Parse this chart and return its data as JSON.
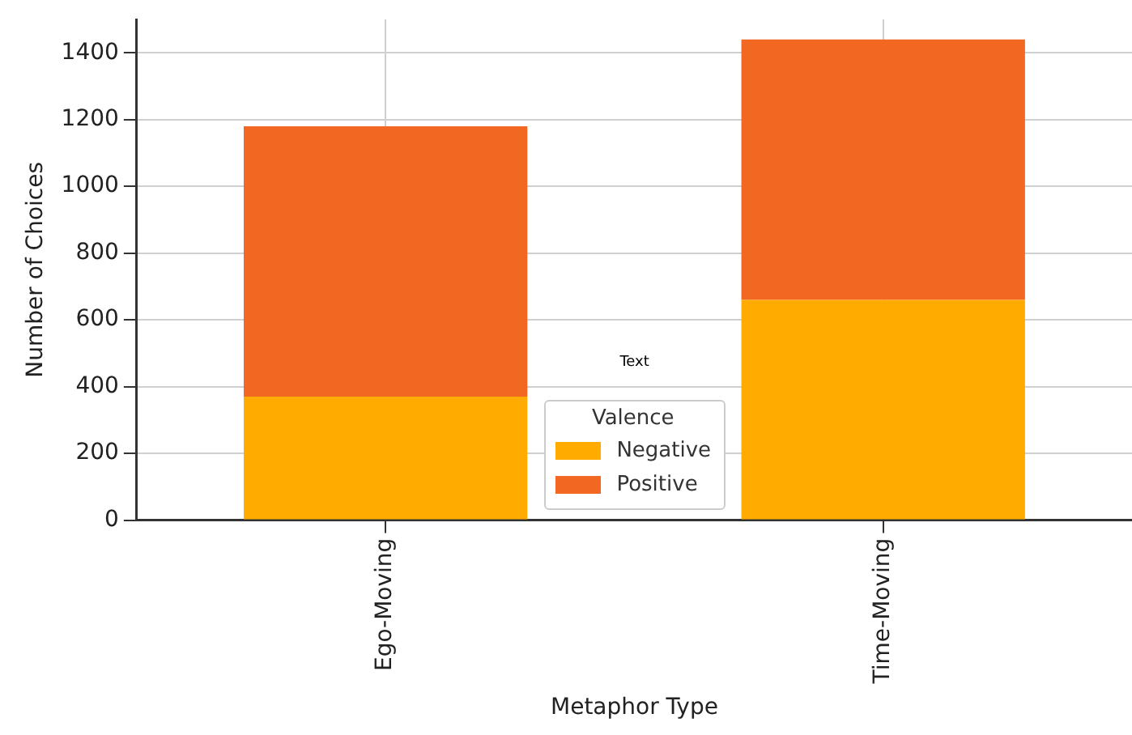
{
  "chart_data": {
    "type": "bar",
    "stacked": true,
    "xlabel": "Metaphor Type",
    "ylabel": "Number of Choices",
    "legend_title": "Valence",
    "categories": [
      "Ego-Moving",
      "Time-Moving"
    ],
    "series": [
      {
        "name": "Negative",
        "color": "#ffab00",
        "values": [
          370,
          660
        ]
      },
      {
        "name": "Positive",
        "color": "#f26722",
        "values": [
          810,
          780
        ]
      }
    ],
    "ylim": [
      0,
      1500
    ],
    "yticks": [
      0,
      200,
      400,
      600,
      800,
      1000,
      1200,
      1400
    ],
    "grid": true,
    "legend": "bottom",
    "annotations": [
      "Text"
    ]
  }
}
